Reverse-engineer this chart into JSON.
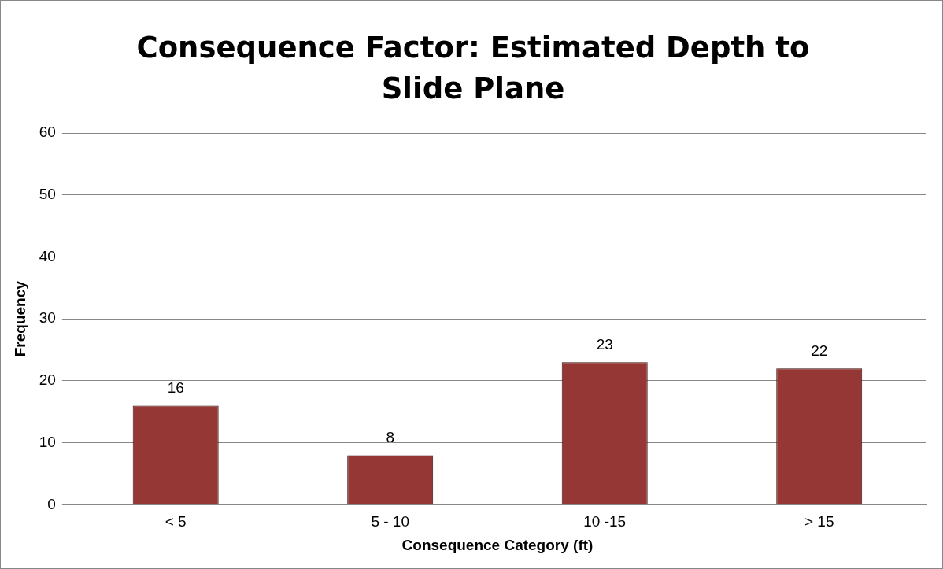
{
  "chart_data": {
    "type": "bar",
    "title": "Consequence Factor: Estimated Depth to Slide Plane",
    "xlabel": "Consequence Category (ft)",
    "ylabel": "Frequency",
    "categories": [
      "< 5",
      "5 - 10",
      "10 -15",
      "> 15"
    ],
    "values": [
      16,
      8,
      23,
      22
    ],
    "color": "#953735",
    "ylim": [
      0,
      60
    ],
    "yticks": [
      0,
      10,
      20,
      30,
      40,
      50,
      60
    ],
    "grid": "y",
    "data_labels": true,
    "legend": false
  }
}
